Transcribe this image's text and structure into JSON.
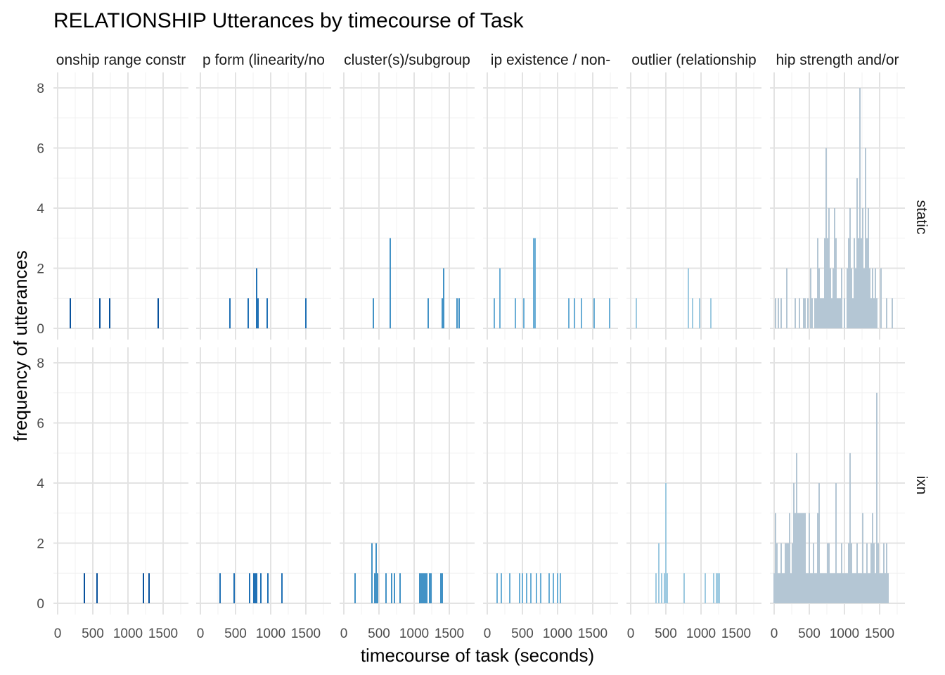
{
  "chart_data": {
    "type": "bar",
    "title": "RELATIONSHIP Utterances by timecourse of Task",
    "xlabel": "timecourse of task (seconds)",
    "ylabel": "frequency of utterances",
    "xlim": [
      -60,
      1860
    ],
    "ylim": [
      0,
      8
    ],
    "x_ticks": [
      0,
      500,
      1000,
      1500
    ],
    "x_tick_labels": [
      "0",
      "500",
      "1000",
      "1500"
    ],
    "y_ticks": [
      0,
      2,
      4,
      6,
      8
    ],
    "y_tick_labels": [
      "0",
      "2",
      "4",
      "6",
      "8"
    ],
    "grid": true,
    "bin_width": 20,
    "columns": [
      {
        "label": "relationship range constraint",
        "strip_text": "onship range constr",
        "color": "#08519c"
      },
      {
        "label": "relationship form (linearity/non-linearity)",
        "strip_text": "p form (linearity/no",
        "color": "#2171b5"
      },
      {
        "label": "cluster(s)/subgroups",
        "strip_text": "cluster(s)/subgroup",
        "color": "#4292c6"
      },
      {
        "label": "relationship existence / non-existence",
        "strip_text": "ip existence / non-",
        "color": "#6baed6"
      },
      {
        "label": "outlier (relationship)",
        "strip_text": "outlier (relationship",
        "color": "#9ecae1"
      },
      {
        "label": "relationship strength and/or direction",
        "strip_text": "hip strength and/or",
        "color": "#b4c6d4"
      }
    ],
    "rows": [
      "static",
      "ixn"
    ],
    "panels": [
      [
        {
          "x": [
            180,
            600,
            740,
            1430
          ],
          "y": [
            1,
            1,
            1,
            1
          ]
        },
        {
          "x": [
            420,
            680,
            800,
            820,
            950,
            1500
          ],
          "y": [
            1,
            1,
            2,
            1,
            1,
            1
          ]
        },
        {
          "x": [
            420,
            660,
            1200,
            1400,
            1420,
            1610,
            1640
          ],
          "y": [
            1,
            3,
            1,
            1,
            2,
            1,
            1
          ]
        },
        {
          "x": [
            100,
            180,
            400,
            520,
            660,
            680,
            1160,
            1240,
            1340,
            1520,
            1740
          ],
          "y": [
            1,
            2,
            1,
            1,
            3,
            3,
            1,
            1,
            1,
            1,
            1
          ]
        },
        {
          "x": [
            80,
            820,
            880,
            980,
            1140
          ],
          "y": [
            1,
            2,
            1,
            1,
            1
          ]
        },
        {
          "x": [
            20,
            60,
            100,
            180,
            300,
            360,
            420,
            440,
            480,
            520,
            540,
            580,
            600,
            620,
            640,
            660,
            680,
            700,
            720,
            740,
            760,
            780,
            800,
            820,
            840,
            860,
            880,
            900,
            920,
            940,
            960,
            1000,
            1040,
            1060,
            1080,
            1100,
            1120,
            1140,
            1160,
            1180,
            1200,
            1220,
            1240,
            1260,
            1280,
            1300,
            1320,
            1340,
            1360,
            1380,
            1400,
            1420,
            1440,
            1460,
            1520,
            1600,
            1680
          ],
          "y": [
            1,
            1,
            1,
            2,
            1,
            1,
            1,
            1,
            1,
            2,
            1,
            1,
            1,
            3,
            2,
            1,
            1,
            1,
            3,
            6,
            3,
            4,
            2,
            1,
            2,
            4,
            3,
            1,
            1,
            1,
            2,
            1,
            2,
            3,
            4,
            2,
            1,
            3,
            2,
            5,
            3,
            8,
            3,
            4,
            2,
            6,
            3,
            4,
            2,
            1,
            2,
            1,
            2,
            1,
            2,
            1,
            1
          ]
        }
      ],
      [
        {
          "x": [
            380,
            560,
            1220,
            1300
          ],
          "y": [
            1,
            1,
            1,
            1
          ]
        },
        {
          "x": [
            280,
            480,
            700,
            760,
            780,
            800,
            860,
            960,
            1160
          ],
          "y": [
            1,
            1,
            1,
            1,
            1,
            1,
            1,
            1,
            1
          ]
        },
        {
          "x": [
            160,
            400,
            440,
            460,
            480,
            600,
            680,
            720,
            800,
            1080,
            1100,
            1120,
            1140,
            1160,
            1180,
            1220,
            1240,
            1380,
            1400
          ],
          "y": [
            1,
            2,
            1,
            2,
            1,
            1,
            1,
            1,
            1,
            1,
            1,
            1,
            1,
            1,
            1,
            1,
            1,
            1,
            1
          ]
        },
        {
          "x": [
            140,
            200,
            320,
            460,
            500,
            560,
            620,
            700,
            760,
            880,
            940,
            1000,
            1040
          ],
          "y": [
            1,
            1,
            1,
            1,
            1,
            1,
            1,
            1,
            1,
            1,
            1,
            1,
            1
          ]
        },
        {
          "x": [
            360,
            400,
            440,
            480,
            500,
            520,
            760,
            1060,
            1180,
            1220,
            1240,
            1260
          ],
          "y": [
            1,
            2,
            1,
            1,
            4,
            1,
            1,
            1,
            1,
            1,
            1,
            1
          ]
        },
        {
          "x": [
            0,
            20,
            40,
            60,
            80,
            100,
            120,
            140,
            160,
            180,
            200,
            220,
            240,
            260,
            280,
            300,
            320,
            340,
            360,
            380,
            400,
            420,
            440,
            460,
            480,
            500,
            520,
            540,
            560,
            580,
            600,
            620,
            640,
            660,
            680,
            700,
            720,
            740,
            760,
            780,
            800,
            820,
            840,
            860,
            880,
            900,
            920,
            940,
            960,
            980,
            1000,
            1020,
            1040,
            1060,
            1080,
            1100,
            1120,
            1140,
            1160,
            1180,
            1200,
            1220,
            1240,
            1260,
            1280,
            1300,
            1320,
            1340,
            1360,
            1380,
            1400,
            1420,
            1440,
            1460,
            1480,
            1500,
            1520,
            1540,
            1560,
            1580,
            1600,
            1620
          ],
          "y": [
            1,
            3,
            2,
            1,
            1,
            2,
            1,
            1,
            2,
            2,
            2,
            3,
            1,
            2,
            4,
            3,
            5,
            3,
            3,
            3,
            3,
            3,
            3,
            1,
            1,
            3,
            1,
            1,
            2,
            1,
            1,
            3,
            4,
            1,
            1,
            1,
            1,
            1,
            2,
            2,
            1,
            1,
            1,
            1,
            4,
            1,
            1,
            1,
            2,
            1,
            1,
            1,
            1,
            2,
            5,
            2,
            1,
            1,
            1,
            2,
            1,
            1,
            1,
            3,
            1,
            1,
            2,
            1,
            1,
            2,
            3,
            2,
            1,
            7,
            2,
            1,
            1,
            1,
            2,
            1,
            2,
            1
          ]
        }
      ]
    ]
  }
}
